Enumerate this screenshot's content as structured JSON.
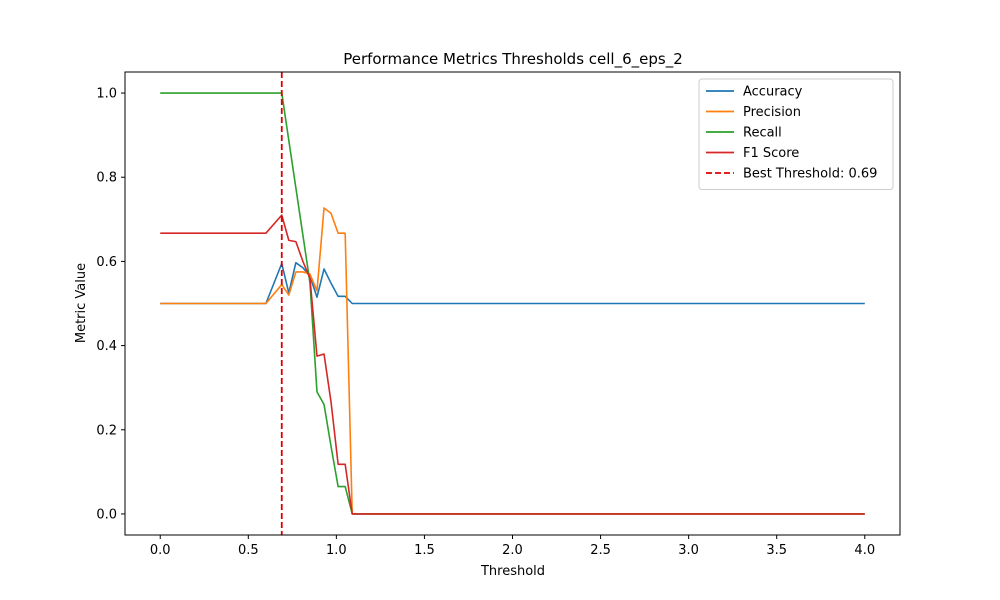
{
  "chart_data": {
    "type": "line",
    "title": "Performance Metrics Thresholds cell_6_eps_2",
    "xlabel": "Threshold",
    "ylabel": "Metric Value",
    "xlim": [
      -0.2,
      4.2
    ],
    "ylim": [
      -0.05,
      1.05
    ],
    "xticks": [
      0.0,
      0.5,
      1.0,
      1.5,
      2.0,
      2.5,
      3.0,
      3.5,
      4.0
    ],
    "xtick_labels": [
      "0.0",
      "0.5",
      "1.0",
      "1.5",
      "2.0",
      "2.5",
      "3.0",
      "3.5",
      "4.0"
    ],
    "yticks": [
      0.0,
      0.2,
      0.4,
      0.6,
      0.8,
      1.0
    ],
    "ytick_labels": [
      "0.0",
      "0.2",
      "0.4",
      "0.6",
      "0.8",
      "1.0"
    ],
    "grid": false,
    "legend_position": "top-right",
    "series": [
      {
        "name": "Accuracy",
        "color": "#1f77b4",
        "style": "solid",
        "points": [
          [
            0.0,
            0.5
          ],
          [
            0.6,
            0.5
          ],
          [
            0.69,
            0.595
          ],
          [
            0.73,
            0.525
          ],
          [
            0.77,
            0.597
          ],
          [
            0.81,
            0.585
          ],
          [
            0.85,
            0.565
          ],
          [
            0.89,
            0.515
          ],
          [
            0.93,
            0.582
          ],
          [
            0.97,
            0.548
          ],
          [
            1.01,
            0.517
          ],
          [
            1.05,
            0.517
          ],
          [
            1.09,
            0.5
          ],
          [
            4.0,
            0.5
          ]
        ]
      },
      {
        "name": "Precision",
        "color": "#ff7f0e",
        "style": "solid",
        "points": [
          [
            0.0,
            0.5
          ],
          [
            0.6,
            0.5
          ],
          [
            0.69,
            0.545
          ],
          [
            0.73,
            0.52
          ],
          [
            0.77,
            0.575
          ],
          [
            0.81,
            0.575
          ],
          [
            0.85,
            0.57
          ],
          [
            0.89,
            0.53
          ],
          [
            0.93,
            0.727
          ],
          [
            0.97,
            0.714
          ],
          [
            1.01,
            0.667
          ],
          [
            1.05,
            0.667
          ],
          [
            1.09,
            0.0
          ],
          [
            4.0,
            0.0
          ]
        ]
      },
      {
        "name": "Recall",
        "color": "#2ca02c",
        "style": "solid",
        "points": [
          [
            0.0,
            1.0
          ],
          [
            0.69,
            1.0
          ],
          [
            0.85,
            0.55
          ],
          [
            0.89,
            0.29
          ],
          [
            0.93,
            0.26
          ],
          [
            0.97,
            0.16
          ],
          [
            1.01,
            0.065
          ],
          [
            1.05,
            0.065
          ],
          [
            1.09,
            0.0
          ],
          [
            4.0,
            0.0
          ]
        ]
      },
      {
        "name": "F1 Score",
        "color": "#d62728",
        "style": "solid",
        "points": [
          [
            0.0,
            0.667
          ],
          [
            0.6,
            0.667
          ],
          [
            0.69,
            0.71
          ],
          [
            0.73,
            0.65
          ],
          [
            0.77,
            0.647
          ],
          [
            0.81,
            0.6
          ],
          [
            0.85,
            0.56
          ],
          [
            0.89,
            0.375
          ],
          [
            0.93,
            0.38
          ],
          [
            0.97,
            0.265
          ],
          [
            1.01,
            0.118
          ],
          [
            1.05,
            0.118
          ],
          [
            1.09,
            0.0
          ],
          [
            4.0,
            0.0
          ]
        ]
      }
    ],
    "vline": {
      "name": "Best Threshold: 0.69",
      "x": 0.69,
      "color": "#e00000",
      "style": "dashed"
    }
  }
}
